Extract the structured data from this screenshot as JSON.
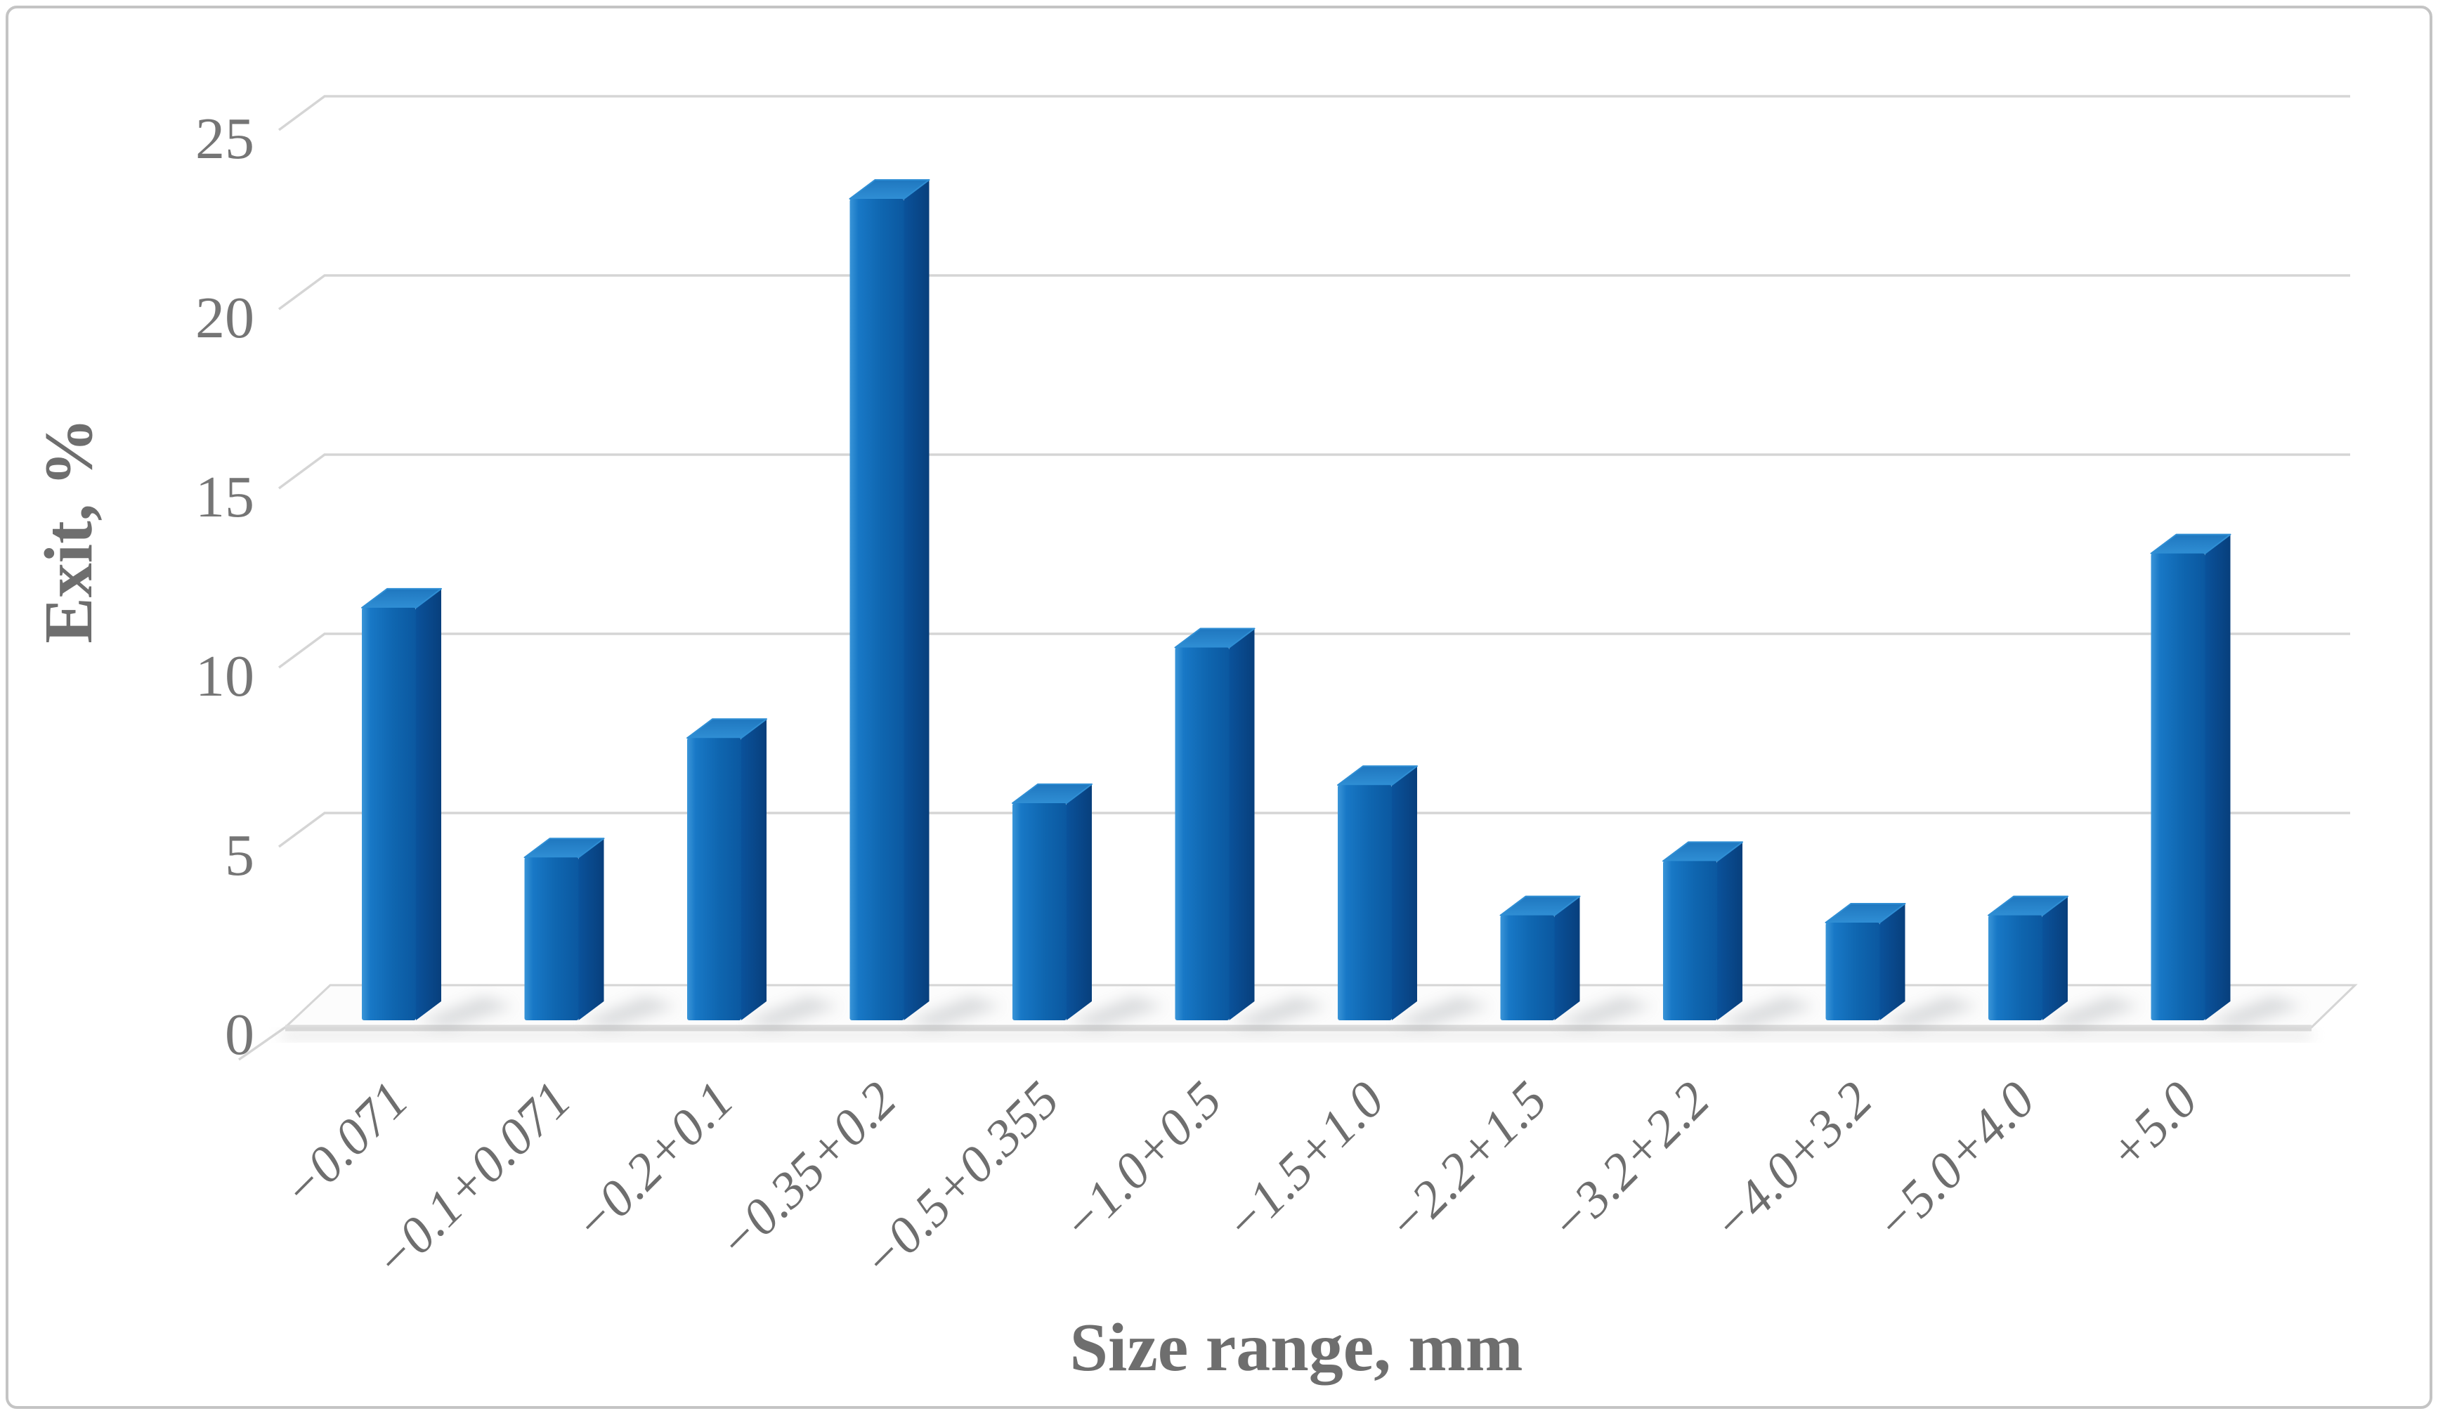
{
  "figure": {
    "type_label": "3-D column chart",
    "background": "#ffffff",
    "border_color": "#c4c4c4"
  },
  "chart_data": {
    "type": "bar",
    "style": "3d-column",
    "title": "",
    "xlabel": "Size range, mm",
    "ylabel": "Exit, %",
    "categories": [
      "−0.071",
      "−0.1+0.071",
      "−0.2+0.1",
      "−0.35+0.2",
      "−0.5+0.355",
      "−1.0+0.5",
      "−1.5+1.0",
      "−2.2+1.5",
      "−3.2+2.2",
      "−4.0+3.2",
      "−5.0+4.0",
      "+5.0"
    ],
    "values": [
      11.4,
      4.5,
      7.8,
      22.7,
      6.0,
      10.3,
      6.5,
      2.9,
      4.4,
      2.7,
      2.9,
      12.9
    ],
    "yticks": [
      0,
      5,
      10,
      15,
      20,
      25
    ],
    "ylim": [
      0,
      27
    ],
    "grid": true,
    "legend": "none",
    "bar_color": "#1272BE",
    "bar_side_color": "#0A4E94",
    "bar_top_color": "#2C86CC",
    "gridline_color": "#d5d5d5",
    "tick_label_color": "#757575"
  }
}
